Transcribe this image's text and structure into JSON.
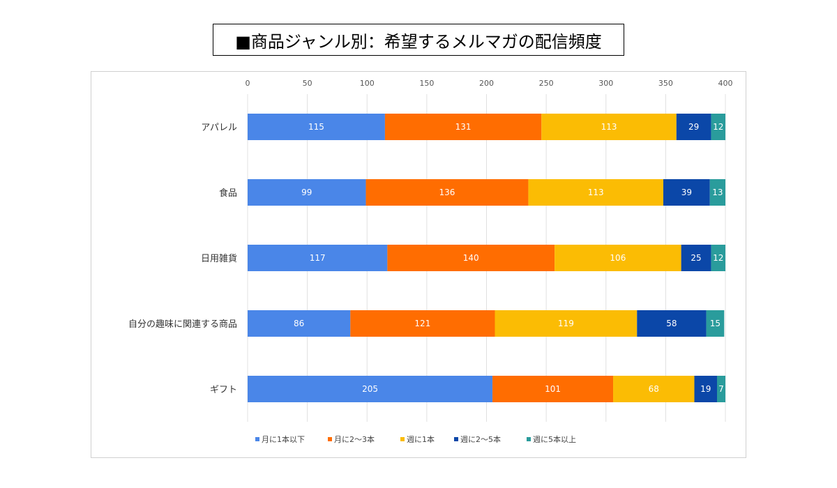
{
  "chart_data": {
    "type": "bar",
    "orientation": "horizontal",
    "stacked": true,
    "title": "■商品ジャンル別：希望するメルマガの配信頻度",
    "categories": [
      "アパレル",
      "食品",
      "日用雑貨",
      "自分の趣味に関連する商品",
      "ギフト"
    ],
    "series": [
      {
        "name": "月に1本以下",
        "color": "#4a86e8",
        "values": [
          115,
          99,
          117,
          86,
          205
        ]
      },
      {
        "name": "月に2〜3本",
        "color": "#ff6d01",
        "values": [
          131,
          136,
          140,
          121,
          101
        ]
      },
      {
        "name": "週に1本",
        "color": "#fbbc04",
        "values": [
          113,
          113,
          106,
          119,
          68
        ]
      },
      {
        "name": "週に2〜5本",
        "color": "#0b47a8",
        "values": [
          29,
          39,
          25,
          58,
          19
        ]
      },
      {
        "name": "週に5本以上",
        "color": "#2a9c9c",
        "values": [
          12,
          13,
          12,
          15,
          7
        ]
      }
    ],
    "xlim": [
      0,
      400
    ],
    "xticks": [
      "0",
      "50",
      "100",
      "150",
      "200",
      "250",
      "300",
      "350",
      "400"
    ],
    "grid": true,
    "legend_position": "bottom"
  }
}
